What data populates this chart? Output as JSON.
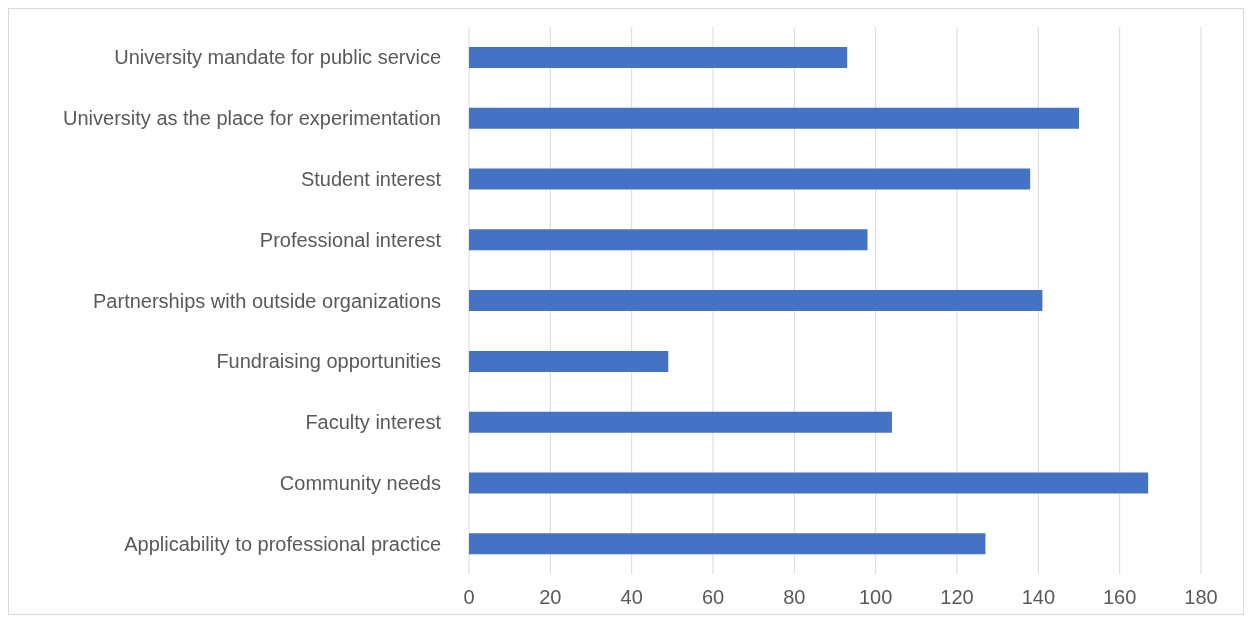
{
  "chart_data": {
    "type": "bar",
    "orientation": "horizontal",
    "categories": [
      "University mandate for public service",
      "University as the place for experimentation",
      "Student interest",
      "Professional interest",
      "Partnerships with outside organizations",
      "Fundraising opportunities",
      "Faculty interest",
      "Community needs",
      "Applicability to professional practice"
    ],
    "values": [
      93,
      150,
      138,
      98,
      141,
      49,
      104,
      167,
      127
    ],
    "color": "#4472c4",
    "xlim": [
      0,
      180
    ],
    "xticks": [
      0,
      20,
      40,
      60,
      80,
      100,
      120,
      140,
      160,
      180
    ],
    "grid": "x",
    "legend": false
  }
}
